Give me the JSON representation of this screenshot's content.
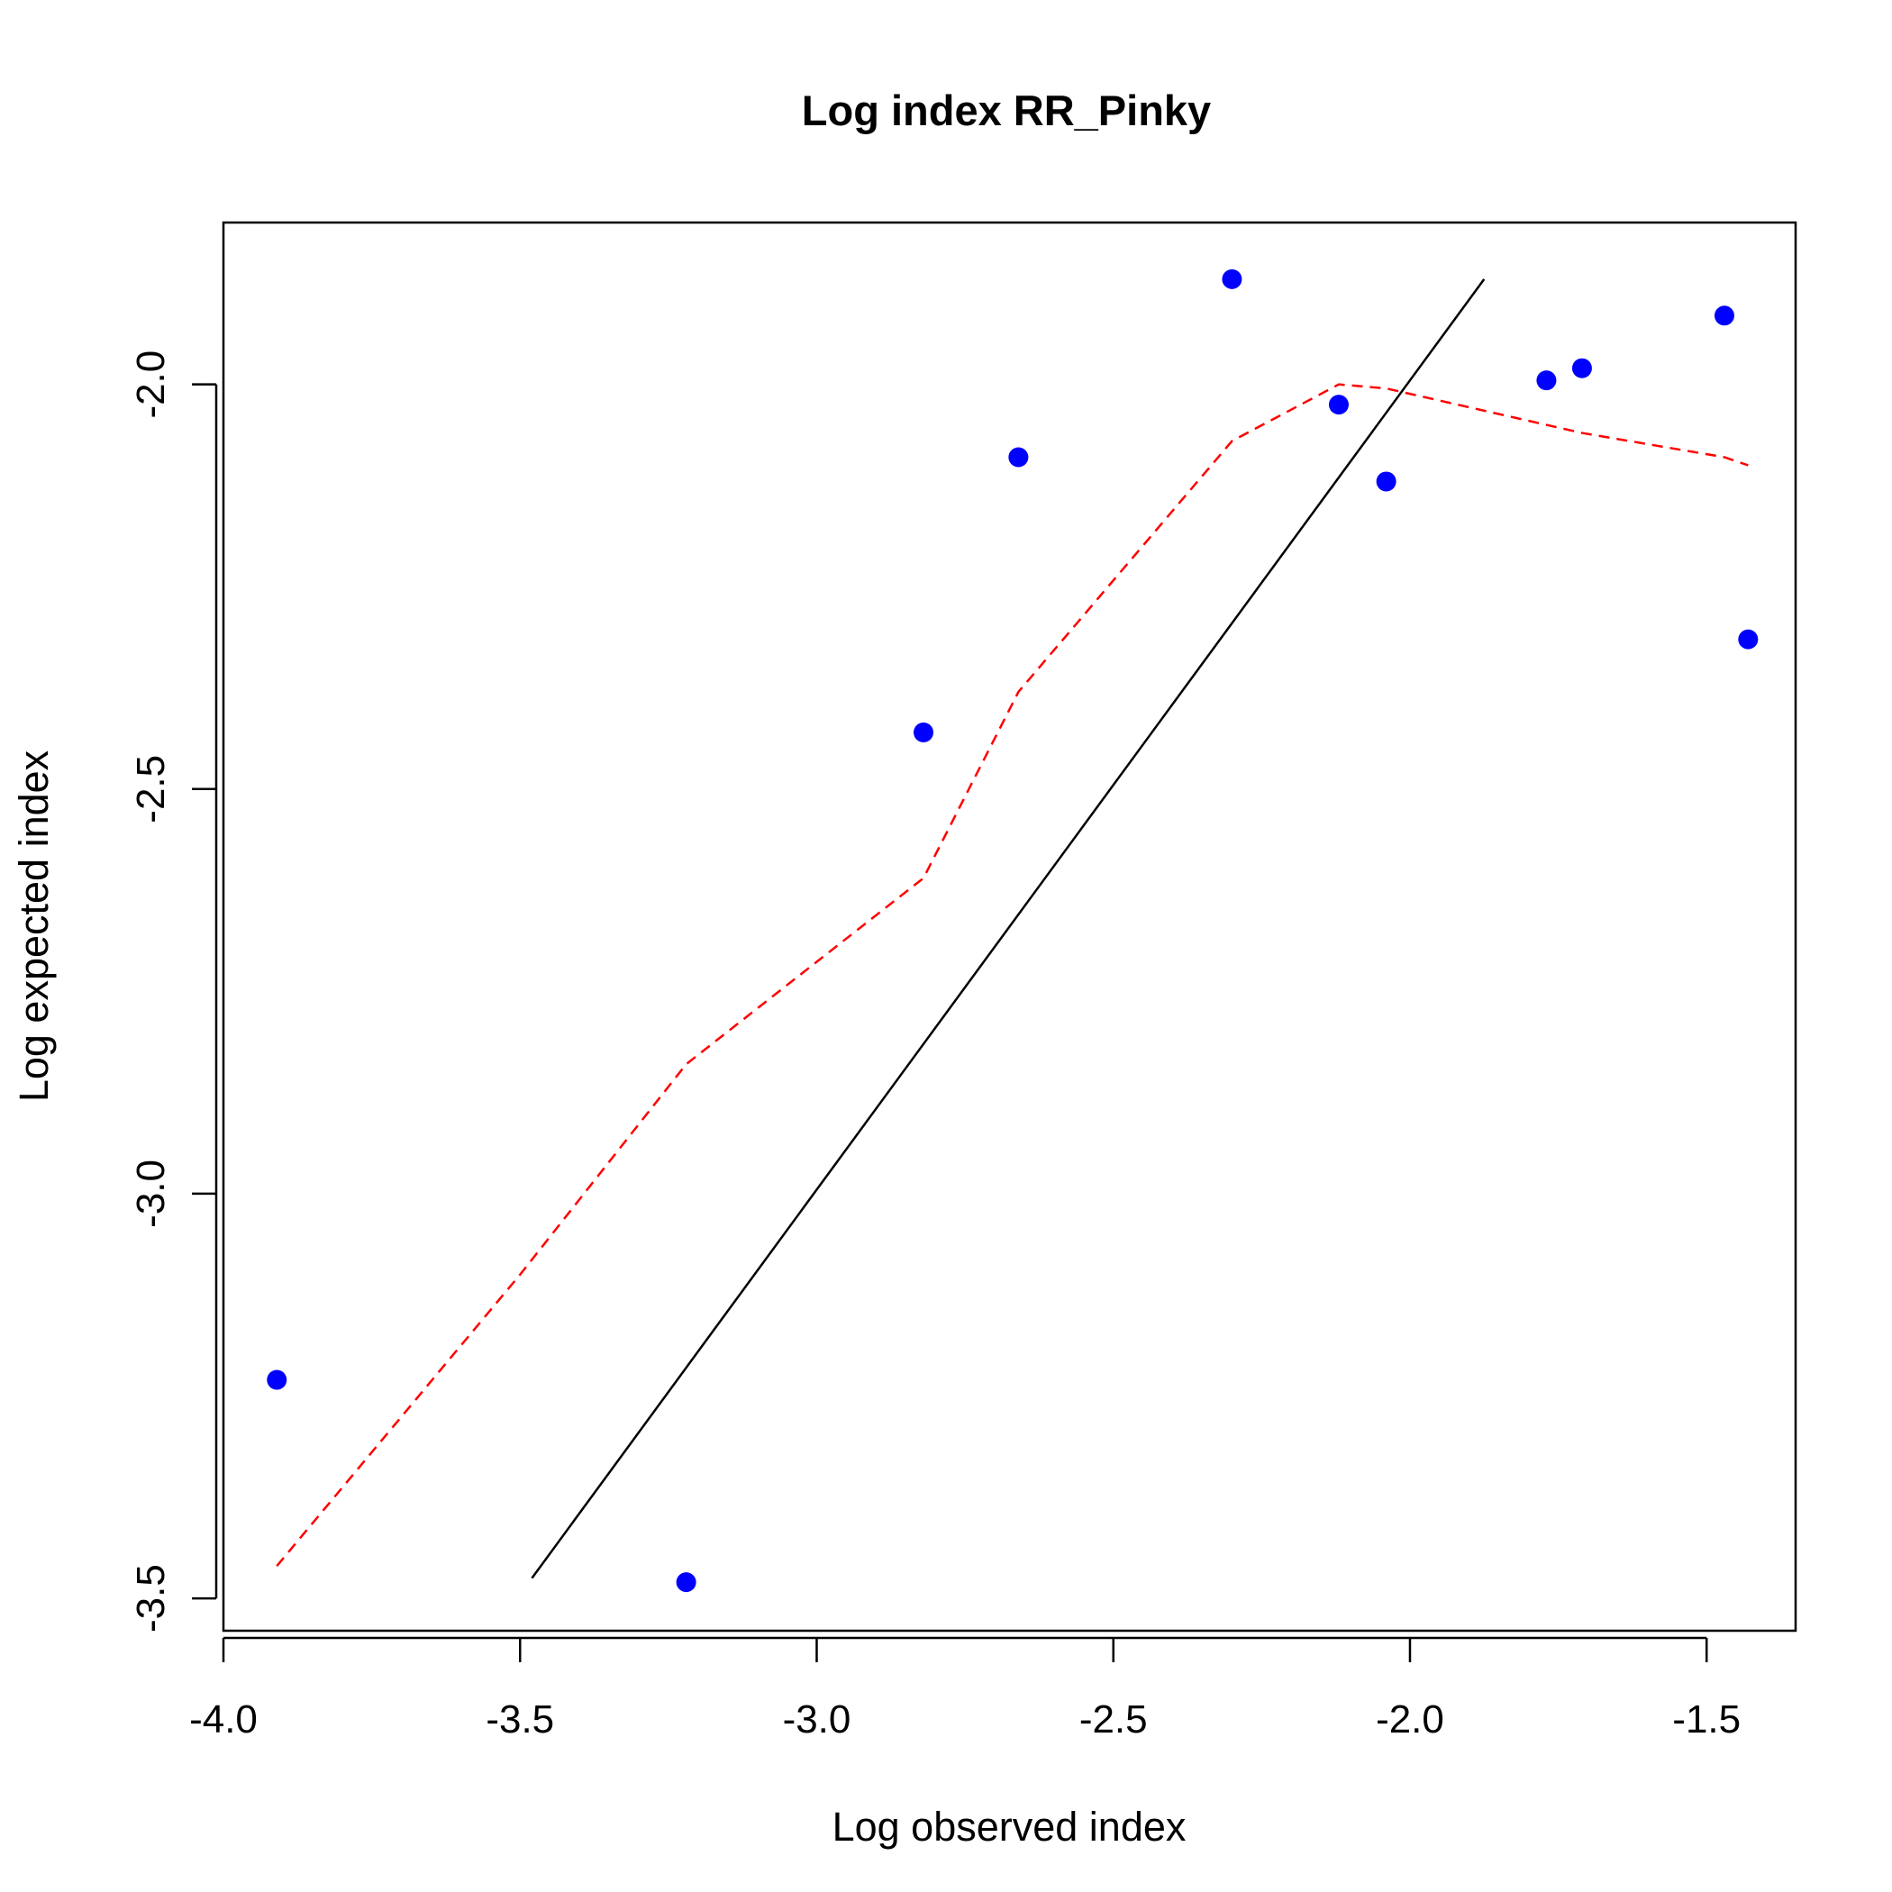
{
  "chart_data": {
    "type": "scatter",
    "title": "Log index RR_Pinky",
    "xlabel": "Log observed index",
    "ylabel": "Log expected index",
    "xlim": [
      -4.0,
      -1.35
    ],
    "ylim": [
      -3.54,
      -1.8
    ],
    "x_ticks": [
      -4.0,
      -3.5,
      -3.0,
      -2.5,
      -2.0,
      -1.5
    ],
    "x_tick_labels": [
      "-4.0",
      "-3.5",
      "-3.0",
      "-2.5",
      "-2.0",
      "-1.5"
    ],
    "y_ticks": [
      -3.5,
      -3.0,
      -2.5,
      -2.0
    ],
    "y_tick_labels": [
      "-3.5",
      "-3.0",
      "-2.5",
      "-2.0"
    ],
    "grid": false,
    "legend": "none",
    "points": {
      "x": [
        -3.91,
        -3.22,
        -2.82,
        -2.66,
        -2.3,
        -2.12,
        -2.04,
        -1.77,
        -1.71,
        -1.47,
        -1.43
      ],
      "y": [
        -3.23,
        -3.48,
        -2.43,
        -2.09,
        -1.87,
        -2.025,
        -2.12,
        -1.995,
        -1.98,
        -1.915,
        -2.315
      ],
      "color": "#0000ff"
    },
    "reference_line": {
      "x": [
        -3.48,
        -1.875
      ],
      "y": [
        -3.475,
        -1.87
      ],
      "color": "#000000"
    },
    "smooth_line": {
      "x": [
        -3.91,
        -3.5,
        -3.22,
        -2.82,
        -2.66,
        -2.3,
        -2.12,
        -2.04,
        -1.77,
        -1.71,
        -1.47,
        -1.43
      ],
      "y": [
        -3.46,
        -3.1,
        -2.84,
        -2.61,
        -2.38,
        -2.07,
        -2.0,
        -2.005,
        -2.05,
        -2.06,
        -2.09,
        -2.1
      ],
      "color": "#ff0000",
      "style": "dashed"
    }
  }
}
